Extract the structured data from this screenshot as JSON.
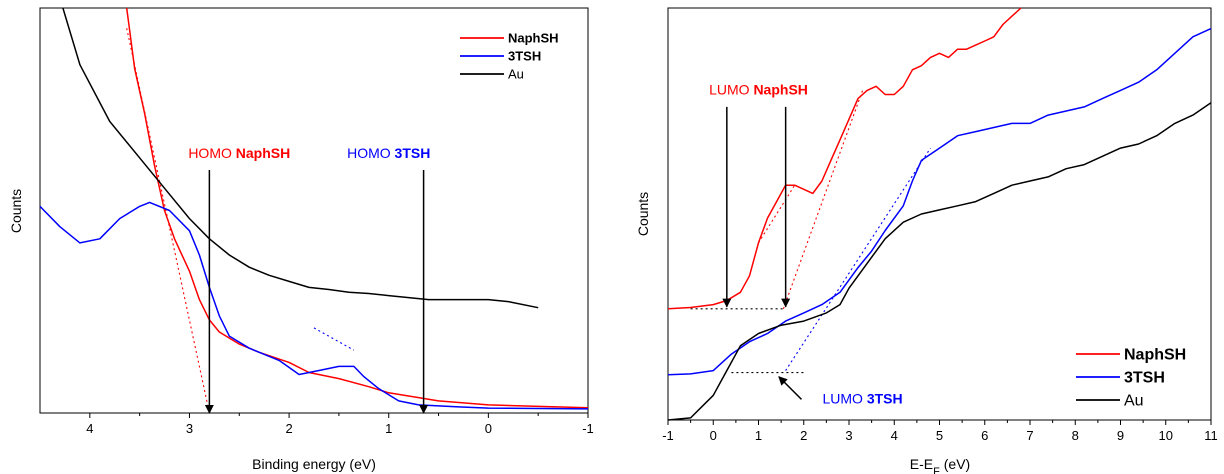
{
  "chart_data": [
    {
      "type": "line",
      "xlabel": "Binding energy (eV)",
      "ylabel": "Counts",
      "xlim": [
        4.5,
        -1
      ],
      "ylim": [
        0,
        100
      ],
      "x_reversed": true,
      "y_tick_labels": false,
      "grid": false,
      "legend_position": "top-right",
      "xticks": [
        4,
        3,
        2,
        1,
        0,
        -1
      ],
      "series": [
        {
          "name": "NaphSH",
          "color": "#ff0000",
          "points": [
            [
              3.63,
              100
            ],
            [
              3.55,
              85
            ],
            [
              3.45,
              74
            ],
            [
              3.35,
              61
            ],
            [
              3.25,
              50
            ],
            [
              3.15,
              43
            ],
            [
              3.0,
              35
            ],
            [
              2.9,
              28
            ],
            [
              2.8,
              23
            ],
            [
              2.7,
              20
            ],
            [
              2.5,
              17
            ],
            [
              2.3,
              15
            ],
            [
              2.0,
              12.5
            ],
            [
              1.8,
              10
            ],
            [
              1.5,
              8.5
            ],
            [
              1.2,
              6.5
            ],
            [
              1.0,
              5
            ],
            [
              0.5,
              3
            ],
            [
              0,
              2
            ],
            [
              -1,
              1.3
            ]
          ]
        },
        {
          "name": "3TSH",
          "color": "#0000ff",
          "points": [
            [
              4.5,
              51
            ],
            [
              4.3,
              46
            ],
            [
              4.1,
              42
            ],
            [
              3.9,
              43
            ],
            [
              3.7,
              48
            ],
            [
              3.5,
              51
            ],
            [
              3.4,
              52
            ],
            [
              3.2,
              50
            ],
            [
              3.0,
              45
            ],
            [
              2.9,
              39
            ],
            [
              2.8,
              31
            ],
            [
              2.7,
              24
            ],
            [
              2.6,
              19
            ],
            [
              2.4,
              16
            ],
            [
              2.1,
              13
            ],
            [
              1.9,
              9.5
            ],
            [
              1.7,
              10.5
            ],
            [
              1.5,
              11.5
            ],
            [
              1.35,
              11.5
            ],
            [
              1.25,
              9
            ],
            [
              1.1,
              6
            ],
            [
              0.9,
              3
            ],
            [
              0.7,
              2
            ],
            [
              0.3,
              1.5
            ],
            [
              0,
              1.2
            ],
            [
              -1,
              1
            ]
          ]
        },
        {
          "name": "Au",
          "color": "#000000",
          "points": [
            [
              4.27,
              100
            ],
            [
              4.1,
              86
            ],
            [
              3.8,
              72
            ],
            [
              3.5,
              63
            ],
            [
              3.2,
              54
            ],
            [
              3.0,
              48
            ],
            [
              2.8,
              43
            ],
            [
              2.6,
              39
            ],
            [
              2.4,
              36
            ],
            [
              2.2,
              34
            ],
            [
              2.0,
              32.5
            ],
            [
              1.8,
              31
            ],
            [
              1.6,
              30.5
            ],
            [
              1.4,
              29.8
            ],
            [
              1.2,
              29.5
            ],
            [
              1.0,
              29
            ],
            [
              0.8,
              28.5
            ],
            [
              0.6,
              28
            ],
            [
              0.4,
              28
            ],
            [
              0.2,
              28
            ],
            [
              0.0,
              28
            ],
            [
              -0.2,
              27.5
            ],
            [
              -0.5,
              26
            ]
          ]
        }
      ],
      "fit_lines": [
        {
          "color": "#ff0000",
          "points": [
            [
              3.63,
              95
            ],
            [
              2.8,
              0
            ]
          ]
        },
        {
          "color": "#0000ff",
          "points": [
            [
              1.75,
              21
            ],
            [
              1.35,
              15.5
            ]
          ]
        },
        {
          "color": "#000000",
          "points": [
            [
              4.5,
              0
            ],
            [
              -1,
              0
            ]
          ]
        }
      ],
      "annotations": [
        {
          "text_plain": "HOMO ",
          "text_bold": "NaphSH",
          "color": "#ff0000",
          "label_x": 2.5,
          "label_y": 63,
          "arrow_x": 2.8,
          "arrow_y_from": 60,
          "arrow_y_to": 0
        },
        {
          "text_plain": "HOMO ",
          "text_bold": "3TSH",
          "color": "#0000ff",
          "label_x": 1.0,
          "label_y": 63,
          "arrow_x": 0.65,
          "arrow_y_from": 60,
          "arrow_y_to": 0
        }
      ]
    },
    {
      "type": "line",
      "xlabel": "E-E",
      "xlabel_sub": "F",
      "xlabel_suffix": " (eV)",
      "ylabel": "Counts",
      "xlim": [
        -1,
        11
      ],
      "ylim": [
        0,
        100
      ],
      "y_tick_labels": false,
      "grid": false,
      "legend_position": "bottom-right",
      "xticks": [
        -1,
        0,
        1,
        2,
        3,
        4,
        5,
        6,
        7,
        8,
        9,
        10,
        11
      ],
      "series": [
        {
          "name": "NaphSH",
          "color": "#ff0000",
          "points": [
            [
              -1,
              27
            ],
            [
              -0.5,
              27.3
            ],
            [
              0,
              28
            ],
            [
              0.3,
              29
            ],
            [
              0.6,
              31
            ],
            [
              0.8,
              35
            ],
            [
              1.0,
              43
            ],
            [
              1.2,
              49
            ],
            [
              1.4,
              53
            ],
            [
              1.6,
              57
            ],
            [
              1.8,
              57
            ],
            [
              2.0,
              56
            ],
            [
              2.2,
              55
            ],
            [
              2.4,
              58
            ],
            [
              2.6,
              63
            ],
            [
              2.8,
              68
            ],
            [
              3.0,
              73
            ],
            [
              3.2,
              78
            ],
            [
              3.4,
              80
            ],
            [
              3.6,
              81
            ],
            [
              3.8,
              79
            ],
            [
              4.0,
              79
            ],
            [
              4.2,
              81
            ],
            [
              4.4,
              85
            ],
            [
              4.6,
              86
            ],
            [
              4.8,
              88
            ],
            [
              5.0,
              89
            ],
            [
              5.2,
              88
            ],
            [
              5.4,
              90
            ],
            [
              5.6,
              90
            ],
            [
              5.8,
              91
            ],
            [
              6.0,
              92
            ],
            [
              6.2,
              93
            ],
            [
              6.4,
              96
            ],
            [
              6.6,
              98
            ],
            [
              6.8,
              100
            ]
          ]
        },
        {
          "name": "3TSH",
          "color": "#0000ff",
          "points": [
            [
              -1,
              11
            ],
            [
              -0.5,
              11.2
            ],
            [
              0,
              12
            ],
            [
              0.4,
              16
            ],
            [
              0.8,
              19
            ],
            [
              1.2,
              21
            ],
            [
              1.6,
              24
            ],
            [
              2.0,
              26
            ],
            [
              2.4,
              28
            ],
            [
              2.8,
              31
            ],
            [
              3.2,
              37
            ],
            [
              3.5,
              41
            ],
            [
              3.8,
              46
            ],
            [
              4.2,
              52
            ],
            [
              4.4,
              58
            ],
            [
              4.6,
              63
            ],
            [
              5.0,
              66
            ],
            [
              5.4,
              69
            ],
            [
              5.8,
              70
            ],
            [
              6.2,
              71
            ],
            [
              6.6,
              72
            ],
            [
              7.0,
              72
            ],
            [
              7.4,
              74
            ],
            [
              7.8,
              75
            ],
            [
              8.2,
              76
            ],
            [
              8.6,
              78
            ],
            [
              9.0,
              80
            ],
            [
              9.4,
              82
            ],
            [
              9.8,
              85
            ],
            [
              10.2,
              89
            ],
            [
              10.6,
              93
            ],
            [
              11,
              95
            ]
          ]
        },
        {
          "name": "Au",
          "color": "#000000",
          "points": [
            [
              -1,
              0
            ],
            [
              -0.5,
              0.5
            ],
            [
              0,
              6
            ],
            [
              0.3,
              12
            ],
            [
              0.6,
              18
            ],
            [
              1.0,
              21
            ],
            [
              1.5,
              23
            ],
            [
              2.0,
              24
            ],
            [
              2.5,
              26
            ],
            [
              2.8,
              28
            ],
            [
              3.0,
              32
            ],
            [
              3.4,
              38
            ],
            [
              3.8,
              44
            ],
            [
              4.2,
              48
            ],
            [
              4.6,
              50
            ],
            [
              5.0,
              51
            ],
            [
              5.4,
              52
            ],
            [
              5.8,
              53
            ],
            [
              6.2,
              55
            ],
            [
              6.6,
              57
            ],
            [
              7.0,
              58
            ],
            [
              7.4,
              59
            ],
            [
              7.8,
              61
            ],
            [
              8.2,
              62
            ],
            [
              8.6,
              64
            ],
            [
              9.0,
              66
            ],
            [
              9.4,
              67
            ],
            [
              9.8,
              69
            ],
            [
              10.2,
              72
            ],
            [
              10.6,
              74
            ],
            [
              11,
              77
            ]
          ]
        }
      ],
      "fit_lines": [
        {
          "color": "#ff0000",
          "points": [
            [
              1.0,
              43
            ],
            [
              1.8,
              57
            ]
          ]
        },
        {
          "color": "#ff0000",
          "points": [
            [
              1.55,
              27
            ],
            [
              3.3,
              80
            ]
          ]
        },
        {
          "color": "#0000ff",
          "points": [
            [
              1.6,
              12
            ],
            [
              4.8,
              66
            ]
          ]
        },
        {
          "color": "#000000",
          "points": [
            [
              -0.5,
              27
            ],
            [
              1.6,
              27
            ]
          ]
        },
        {
          "color": "#000000",
          "points": [
            [
              0.4,
              11.5
            ],
            [
              2.0,
              11.5
            ]
          ]
        }
      ],
      "annotations": [
        {
          "text_plain": "LUMO ",
          "text_bold": "NaphSH",
          "color": "#ff0000",
          "label_x": 1.0,
          "label_y": 79,
          "arrows": [
            {
              "x_from": 0.3,
              "y_from": 76,
              "x_to": 0.3,
              "y_to": 27.5
            },
            {
              "x_from": 1.6,
              "y_from": 76,
              "x_to": 1.6,
              "y_to": 27.5
            }
          ]
        },
        {
          "text_plain": "LUMO ",
          "text_bold": "3TSH",
          "color": "#0000ff",
          "label_x": 3.3,
          "label_y": 4,
          "arrows": [
            {
              "x_from": 1.95,
              "y_from": 5,
              "x_to": 1.45,
              "y_to": 10.5
            }
          ]
        }
      ]
    }
  ]
}
